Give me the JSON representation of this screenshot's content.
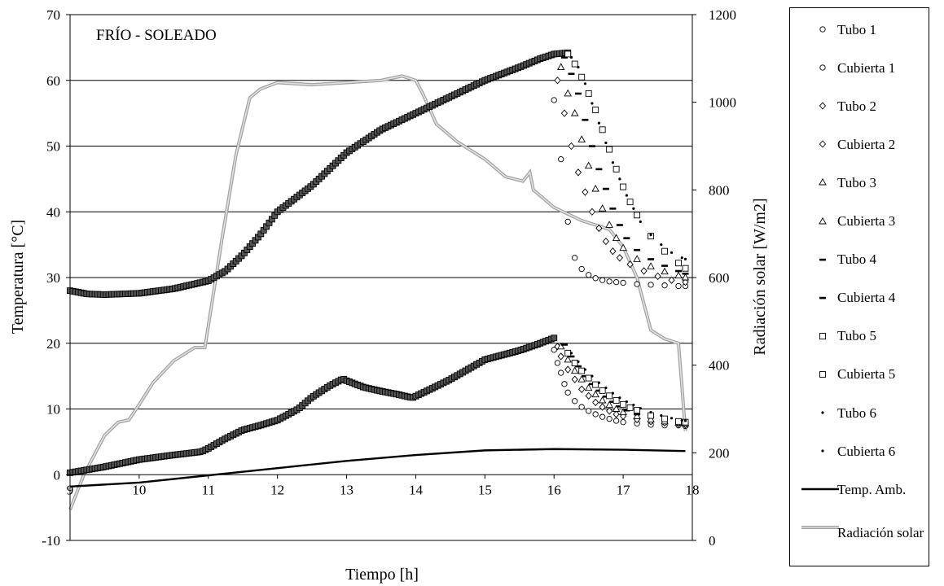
{
  "chart_data": {
    "type": "scatter",
    "title": "FRÍO - SOLEADO",
    "xlabel": "Tiempo [h]",
    "ylabel": "Temperatura [°C]",
    "y2label": "Radiación solar [W/m2]",
    "xlim": [
      9,
      18
    ],
    "ylim": [
      -10,
      70
    ],
    "y2lim": [
      0,
      1200
    ],
    "x_ticks": [
      "9",
      "10",
      "11",
      "12",
      "13",
      "14",
      "15",
      "16",
      "17",
      "18"
    ],
    "y_ticks": [
      "-10",
      "0",
      "10",
      "20",
      "30",
      "40",
      "50",
      "60",
      "70"
    ],
    "y2_ticks": [
      "0",
      "200",
      "400",
      "600",
      "800",
      "1000",
      "1200"
    ],
    "grid": "horizontal",
    "legend_position": "right",
    "series": [
      {
        "name": "Tubo 1",
        "marker": "circle",
        "group": "upper",
        "x": [
          16.0,
          16.1,
          16.2,
          16.3,
          16.4,
          16.5,
          16.6,
          16.7,
          16.8,
          16.9,
          17.0,
          17.2,
          17.4,
          17.6,
          17.8,
          17.9
        ],
        "y": [
          57,
          48,
          38.5,
          33,
          31.3,
          30.4,
          29.9,
          29.6,
          29.4,
          29.3,
          29.2,
          29.0,
          28.9,
          28.8,
          28.7,
          28.7
        ]
      },
      {
        "name": "Cubierta 1",
        "marker": "circle",
        "group": "lower",
        "x": [
          16.0,
          16.05,
          16.1,
          16.15,
          16.2,
          16.3,
          16.4,
          16.5,
          16.6,
          16.7,
          16.8,
          16.9,
          17.0,
          17.2,
          17.4,
          17.6,
          17.8,
          17.9
        ],
        "y": [
          19,
          17,
          15.5,
          13.8,
          12.5,
          11.2,
          10.3,
          9.7,
          9.2,
          8.8,
          8.5,
          8.2,
          8.0,
          7.8,
          7.6,
          7.5,
          7.5,
          7.4
        ]
      },
      {
        "name": "Tubo 2",
        "marker": "diamond",
        "group": "upper",
        "x": [
          16.05,
          16.15,
          16.25,
          16.35,
          16.45,
          16.55,
          16.65,
          16.75,
          16.85,
          16.95,
          17.1,
          17.3,
          17.5,
          17.7,
          17.9
        ],
        "y": [
          60,
          55,
          50,
          46,
          43,
          40,
          37.5,
          35.5,
          34,
          33,
          32,
          31,
          30.2,
          29.6,
          29.3
        ]
      },
      {
        "name": "Cubierta 2",
        "marker": "diamond",
        "group": "lower",
        "x": [
          16.05,
          16.1,
          16.2,
          16.3,
          16.4,
          16.5,
          16.6,
          16.7,
          16.8,
          16.9,
          17.0,
          17.2,
          17.4,
          17.6,
          17.8,
          17.9
        ],
        "y": [
          19.5,
          18,
          16,
          14.5,
          13,
          12,
          11,
          10.3,
          9.7,
          9.2,
          8.9,
          8.4,
          8.1,
          7.9,
          7.7,
          7.6
        ]
      },
      {
        "name": "Tubo 3",
        "marker": "triangle",
        "group": "upper",
        "x": [
          16.1,
          16.2,
          16.3,
          16.4,
          16.5,
          16.6,
          16.7,
          16.8,
          16.9,
          17.0,
          17.2,
          17.4,
          17.6,
          17.8,
          17.9
        ],
        "y": [
          62,
          58,
          55,
          51,
          47,
          43.5,
          40.5,
          38,
          36,
          34.5,
          32.8,
          31.7,
          30.9,
          30.3,
          30.0
        ]
      },
      {
        "name": "Cubierta 3",
        "marker": "triangle",
        "group": "lower",
        "x": [
          16.1,
          16.2,
          16.3,
          16.4,
          16.5,
          16.6,
          16.7,
          16.8,
          16.9,
          17.0,
          17.2,
          17.4,
          17.6,
          17.8,
          17.9
        ],
        "y": [
          19.5,
          17.5,
          15.8,
          14.5,
          13.2,
          12.2,
          11.3,
          10.6,
          10,
          9.5,
          8.9,
          8.4,
          8.1,
          7.9,
          7.8
        ]
      },
      {
        "name": "Tubo 4",
        "marker": "dash",
        "group": "upper",
        "x": [
          16.15,
          16.25,
          16.35,
          16.45,
          16.55,
          16.65,
          16.75,
          16.85,
          16.95,
          17.05,
          17.2,
          17.4,
          17.6,
          17.8,
          17.9
        ],
        "y": [
          63.5,
          61,
          58,
          54,
          50,
          46.5,
          43.5,
          40.5,
          38,
          36,
          34.2,
          32.8,
          31.8,
          31.0,
          30.6
        ]
      },
      {
        "name": "Cubierta 4",
        "marker": "dash",
        "group": "lower",
        "x": [
          16.15,
          16.25,
          16.35,
          16.45,
          16.55,
          16.65,
          16.75,
          16.85,
          16.95,
          17.05,
          17.2,
          17.4,
          17.6,
          17.8,
          17.9
        ],
        "y": [
          19.8,
          18,
          16.5,
          15,
          13.8,
          12.8,
          11.9,
          11.1,
          10.4,
          9.8,
          9.2,
          8.7,
          8.3,
          8.0,
          7.9
        ]
      },
      {
        "name": "Tubo 5",
        "marker": "square",
        "group": "upper",
        "x": [
          16.2,
          16.3,
          16.4,
          16.5,
          16.6,
          16.7,
          16.8,
          16.9,
          17.0,
          17.1,
          17.2,
          17.4,
          17.6,
          17.8,
          17.9
        ],
        "y": [
          64,
          62.5,
          60.5,
          58,
          55.5,
          52.5,
          49.5,
          46.5,
          43.8,
          41.5,
          39.5,
          36.3,
          34,
          32.2,
          31.4
        ]
      },
      {
        "name": "Cubierta 5",
        "marker": "square",
        "group": "lower",
        "x": [
          16.2,
          16.3,
          16.4,
          16.5,
          16.6,
          16.7,
          16.8,
          16.9,
          17.0,
          17.1,
          17.2,
          17.4,
          17.6,
          17.8,
          17.9
        ],
        "y": [
          18.5,
          17,
          15.8,
          14.7,
          13.7,
          12.8,
          12,
          11.3,
          10.7,
          10.2,
          9.8,
          9.0,
          8.5,
          8.1,
          8.0
        ]
      },
      {
        "name": "Tubo 6",
        "marker": "dot",
        "group": "upper",
        "x": [
          16.25,
          16.35,
          16.45,
          16.55,
          16.65,
          16.75,
          16.85,
          16.95,
          17.05,
          17.15,
          17.25,
          17.4,
          17.55,
          17.7,
          17.85,
          17.9
        ],
        "y": [
          63.5,
          62,
          59.5,
          56.5,
          53.5,
          50.5,
          47.5,
          45,
          42.5,
          40.5,
          38.5,
          36.5,
          35,
          33.8,
          33,
          32.8
        ]
      },
      {
        "name": "Cubierta 6",
        "marker": "dot",
        "group": "lower",
        "x": [
          16.25,
          16.35,
          16.45,
          16.55,
          16.65,
          16.75,
          16.85,
          16.95,
          17.05,
          17.15,
          17.25,
          17.4,
          17.55,
          17.7,
          17.85,
          17.9
        ],
        "y": [
          18.5,
          17.2,
          16,
          15,
          14,
          13.2,
          12.4,
          11.7,
          11.1,
          10.6,
          10.1,
          9.5,
          9.0,
          8.6,
          8.3,
          8.2
        ]
      },
      {
        "name": "Temp. Amb.",
        "style": "line",
        "color": "#000000",
        "x": [
          9,
          10,
          11,
          12,
          13,
          14,
          15,
          16,
          17,
          17.9
        ],
        "y": [
          -1.8,
          -1.2,
          -0.1,
          1.0,
          2.1,
          3.0,
          3.7,
          3.9,
          3.8,
          3.6
        ]
      },
      {
        "name": "Radiación solar",
        "style": "line",
        "axis": "y2",
        "color": "#c0c0c0",
        "x": [
          9.0,
          9.2,
          9.5,
          9.7,
          9.85,
          10.0,
          10.2,
          10.5,
          10.8,
          10.95,
          11.2,
          11.4,
          11.6,
          11.75,
          12.0,
          12.5,
          13.0,
          13.5,
          13.8,
          14.0,
          14.1,
          14.3,
          14.6,
          15.0,
          15.3,
          15.55,
          15.65,
          15.7,
          16.0,
          16.4,
          16.6,
          16.8,
          17.0,
          17.2,
          17.4,
          17.6,
          17.8,
          17.9
        ],
        "y": [
          70,
          150,
          240,
          270,
          275,
          310,
          360,
          410,
          440,
          440,
          690,
          880,
          1010,
          1030,
          1045,
          1040,
          1045,
          1050,
          1060,
          1050,
          1020,
          950,
          910,
          870,
          830,
          820,
          840,
          800,
          760,
          730,
          720,
          710,
          670,
          600,
          480,
          460,
          450,
          250
        ]
      }
    ],
    "upper_envelope": {
      "x": [
        9.0,
        9.25,
        9.5,
        10.0,
        10.5,
        11.0,
        11.25,
        11.5,
        11.75,
        12.0,
        12.5,
        13.0,
        13.5,
        14.0,
        14.5,
        15.0,
        15.5,
        15.8,
        16.0,
        16.2
      ],
      "y": [
        28,
        27.5,
        27.4,
        27.6,
        28.3,
        29.5,
        31,
        33.5,
        36.5,
        40,
        44,
        49,
        52.5,
        55,
        57.5,
        60,
        62,
        63.3,
        64,
        64.2
      ]
    },
    "lower_envelope": {
      "x": [
        9.0,
        9.5,
        10.0,
        10.5,
        10.9,
        11.0,
        11.25,
        11.5,
        11.75,
        12.0,
        12.3,
        12.5,
        12.75,
        12.95,
        13.0,
        13.25,
        13.5,
        13.75,
        13.95,
        14.25,
        14.5,
        14.75,
        15.0,
        15.25,
        15.5,
        15.75,
        15.95,
        16.0
      ],
      "y": [
        0.3,
        1.2,
        2.3,
        3.0,
        3.5,
        4.0,
        5.5,
        6.8,
        7.5,
        8.3,
        10.0,
        11.8,
        13.5,
        14.6,
        14.3,
        13.3,
        12.7,
        12.2,
        11.7,
        13.2,
        14.5,
        16.0,
        17.5,
        18.2,
        18.9,
        19.8,
        20.6,
        20.8
      ]
    }
  }
}
